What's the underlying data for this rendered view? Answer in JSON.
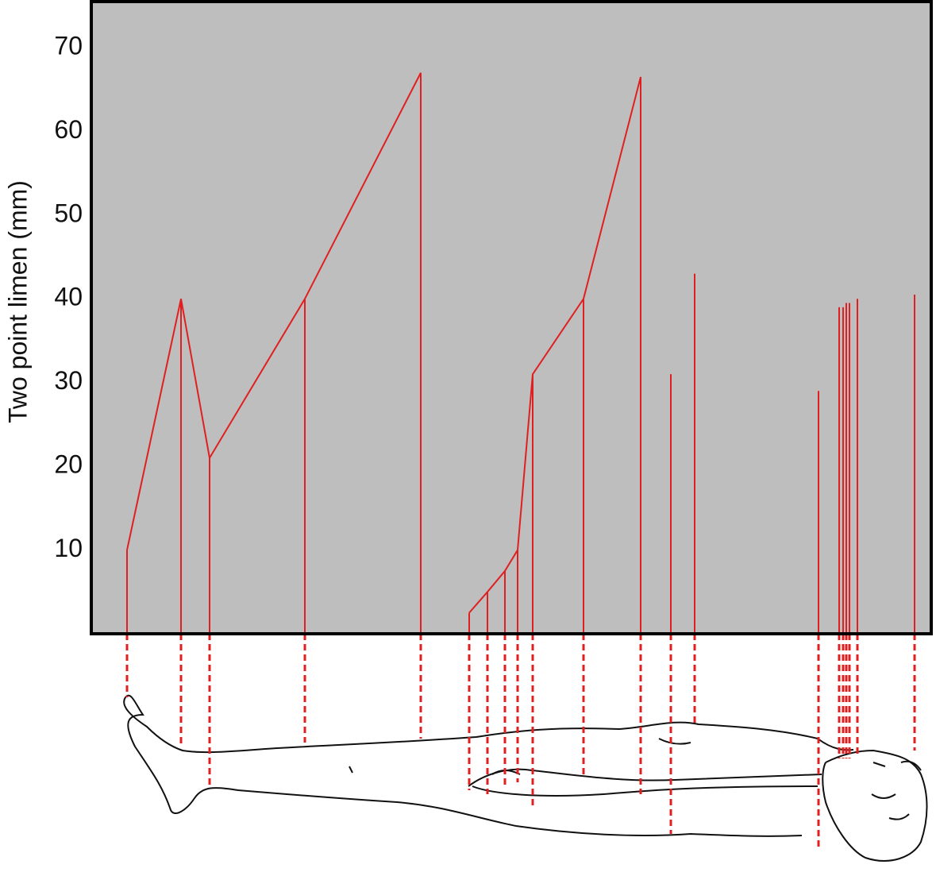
{
  "chart_data": {
    "type": "stem",
    "y_label": "Two point limen (mm)",
    "values": [
      10,
      40,
      21,
      40,
      67,
      2.5,
      5,
      7.5,
      10,
      31,
      40,
      66.5,
      31,
      43,
      29,
      39,
      39,
      39.5,
      39.5,
      40,
      40.5
    ],
    "color": "#e02020",
    "background": "#bebebe",
    "ylim": [
      0,
      75.5
    ],
    "yticks": [
      10,
      20,
      30,
      40,
      50,
      60,
      70
    ]
  }
}
